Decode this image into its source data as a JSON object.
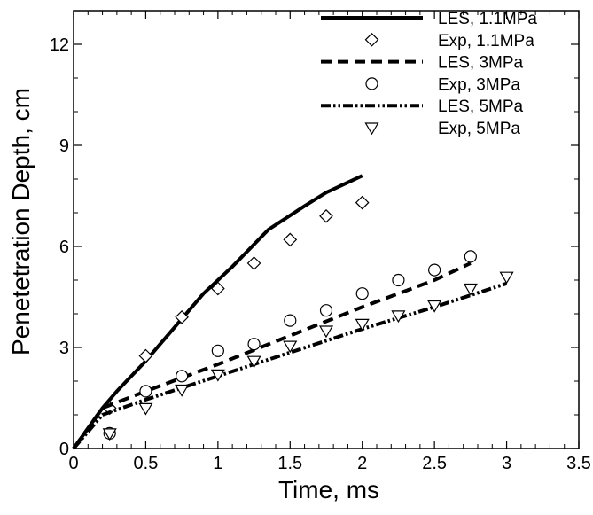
{
  "chart_data": {
    "type": "line",
    "title": "",
    "xlabel": "Time, ms",
    "ylabel": "Penetetration Depth, cm",
    "xlim": [
      0,
      3.5
    ],
    "ylim": [
      0,
      13
    ],
    "xticks": [
      0,
      0.5,
      1,
      1.5,
      2,
      2.5,
      3,
      3.5
    ],
    "xtick_labels": [
      "0",
      "0.5",
      "1",
      "1.5",
      "2",
      "2.5",
      "3",
      "3.5"
    ],
    "yticks": [
      0,
      3,
      6,
      9,
      12
    ],
    "ytick_labels": [
      "0",
      "3",
      "6",
      "9",
      "12"
    ],
    "grid": false,
    "legend_position": "top-right",
    "series": [
      {
        "name": "LES, 1.1MPa",
        "kind": "line",
        "style": "solid",
        "x": [
          0,
          0.1,
          0.2,
          0.3,
          0.5,
          0.7,
          0.9,
          1.1,
          1.35,
          1.6,
          1.75,
          2.0
        ],
        "y": [
          0,
          0.6,
          1.2,
          1.7,
          2.6,
          3.6,
          4.6,
          5.4,
          6.5,
          7.2,
          7.6,
          8.1
        ]
      },
      {
        "name": "Exp, 1.1MPa",
        "kind": "marker",
        "marker": "diamond",
        "x": [
          0.25,
          0.5,
          0.75,
          1.0,
          1.25,
          1.5,
          1.75,
          2.0
        ],
        "y": [
          1.2,
          2.75,
          3.9,
          4.75,
          5.5,
          6.2,
          6.9,
          7.3
        ]
      },
      {
        "name": "LES, 3MPa",
        "kind": "line",
        "style": "dashed",
        "x": [
          0,
          0.2,
          0.5,
          1.0,
          1.5,
          2.0,
          2.5,
          2.75
        ],
        "y": [
          0,
          1.2,
          1.7,
          2.5,
          3.35,
          4.2,
          5.0,
          5.5
        ]
      },
      {
        "name": "Exp, 3MPa",
        "kind": "marker",
        "marker": "circle",
        "x": [
          0.25,
          0.5,
          0.75,
          1.0,
          1.25,
          1.5,
          1.75,
          2.0,
          2.25,
          2.5,
          2.75
        ],
        "y": [
          0.45,
          1.7,
          2.15,
          2.9,
          3.1,
          3.8,
          4.1,
          4.6,
          5.0,
          5.3,
          5.7
        ]
      },
      {
        "name": "LES, 5MPa",
        "kind": "line",
        "style": "dash-dot-dot",
        "x": [
          0,
          0.2,
          0.5,
          1.0,
          1.5,
          2.0,
          2.5,
          3.0
        ],
        "y": [
          0,
          1.0,
          1.45,
          2.15,
          2.85,
          3.55,
          4.2,
          4.9
        ]
      },
      {
        "name": "Exp, 5MPa",
        "kind": "marker",
        "marker": "triangle-down",
        "x": [
          0.25,
          0.5,
          0.75,
          1.0,
          1.25,
          1.5,
          1.75,
          2.0,
          2.25,
          2.5,
          2.75,
          3.0
        ],
        "y": [
          0.45,
          1.2,
          1.75,
          2.2,
          2.6,
          3.05,
          3.5,
          3.7,
          3.95,
          4.25,
          4.75,
          5.1
        ]
      }
    ]
  }
}
